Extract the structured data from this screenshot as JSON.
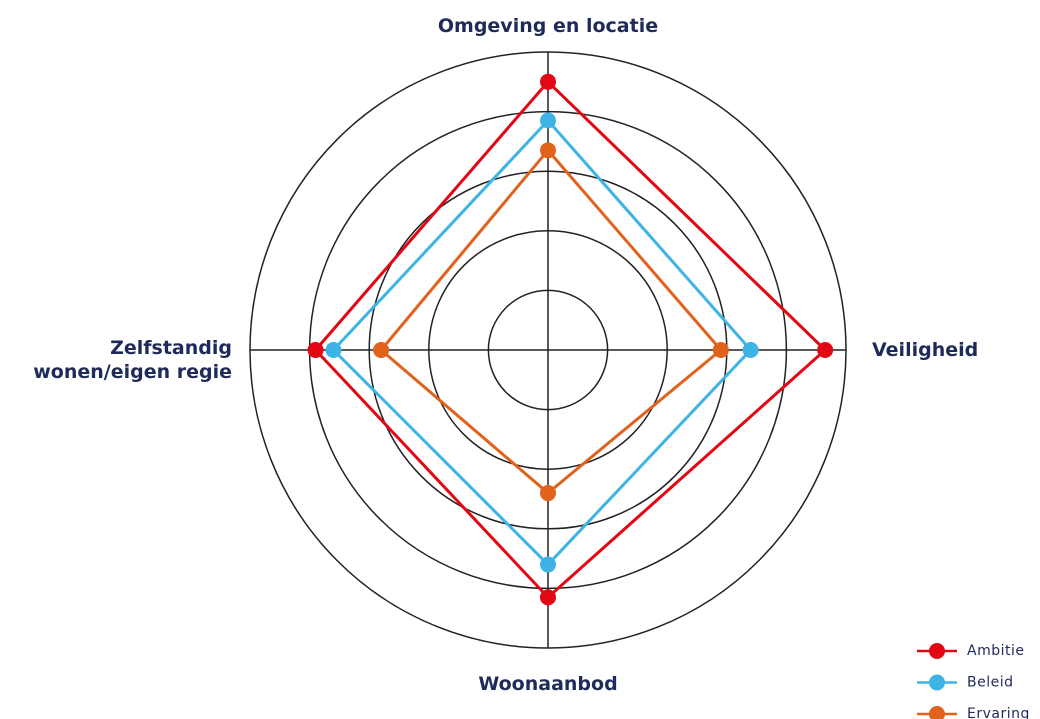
{
  "chart_data": {
    "type": "radar",
    "categories": [
      "Omgeving en locatie",
      "Veiligheid",
      "Woonaanbod",
      "Zelfstandig\nwonen/eigen regie"
    ],
    "series": [
      {
        "name": "Ambitie",
        "color": "#e30613",
        "values": [
          4.5,
          4.65,
          4.15,
          3.9
        ]
      },
      {
        "name": "Beleid",
        "color": "#3db4e5",
        "values": [
          3.85,
          3.4,
          3.6,
          3.6
        ]
      },
      {
        "name": "Ervaring",
        "color": "#e0621b",
        "values": [
          3.35,
          2.9,
          2.4,
          2.8
        ]
      }
    ],
    "rlim": [
      0,
      5
    ],
    "rticks": [
      1,
      2,
      3,
      4,
      5
    ],
    "legend": "lower right"
  }
}
